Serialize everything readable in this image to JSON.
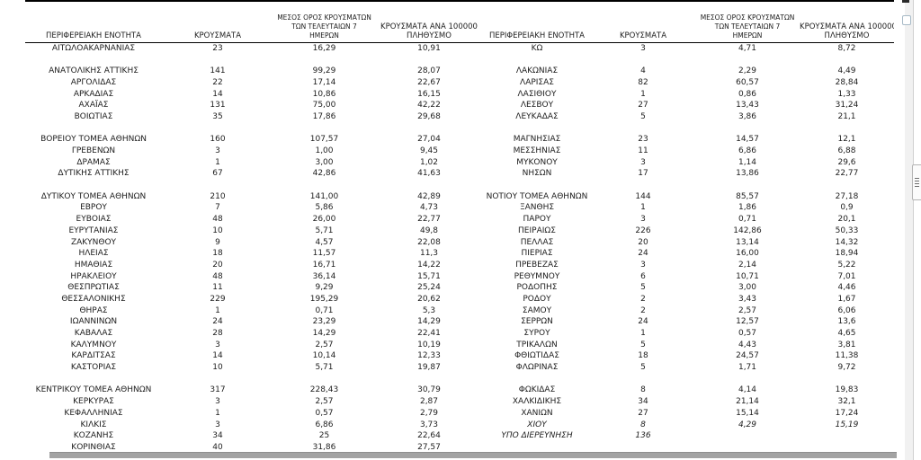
{
  "columns": {
    "region": "ΠΕΡΙΦΕΡΕΙΑΚΗ ΕΝΟΤΗΤΑ",
    "cases": "ΚΡΟΥΣΜΑΤΑ",
    "avg7_lines": [
      "ΜΕΣΟΣ ΟΡΟΣ ΚΡΟΥΣΜΑΤΩΝ",
      "ΤΩΝ ΤΕΛΕΥΤΑΙΩΝ 7",
      "ΗΜΕΡΩΝ"
    ],
    "per100k_lines": [
      "ΚΡΟΥΣΜΑΤΑ ΑΝΑ 100000",
      "ΠΛΗΘΥΣΜΟ"
    ]
  },
  "colors": {
    "text": "#1d1d1d",
    "table_border": "#000000",
    "bottom_bar": "#a3a3a3",
    "scroll_strip": "#f1f1f1"
  },
  "rows": [
    {
      "left": {
        "region": "ΑΙΤΩΛΟΑΚΑΡΝΑΝΙΑΣ",
        "cases": "23",
        "avg7": "16,29",
        "per100k": "10,91"
      },
      "right": {
        "region": "ΚΩ",
        "cases": "3",
        "avg7": "4,71",
        "per100k": "8,72"
      }
    },
    {
      "left": null,
      "right": null
    },
    {
      "left": {
        "region": "ΑΝΑΤΟΛΙΚΗΣ ΑΤΤΙΚΗΣ",
        "cases": "141",
        "avg7": "99,29",
        "per100k": "28,07"
      },
      "right": {
        "region": "ΛΑΚΩΝΙΑΣ",
        "cases": "4",
        "avg7": "2,29",
        "per100k": "4,49"
      }
    },
    {
      "left": {
        "region": "ΑΡΓΟΛΙΔΑΣ",
        "cases": "22",
        "avg7": "17,14",
        "per100k": "22,67"
      },
      "right": {
        "region": "ΛΑΡΙΣΑΣ",
        "cases": "82",
        "avg7": "60,57",
        "per100k": "28,84"
      }
    },
    {
      "left": {
        "region": "ΑΡΚΑΔΙΑΣ",
        "cases": "14",
        "avg7": "10,86",
        "per100k": "16,15"
      },
      "right": {
        "region": "ΛΑΣΙΘΙΟΥ",
        "cases": "1",
        "avg7": "0,86",
        "per100k": "1,33"
      }
    },
    {
      "left": {
        "region": "ΑΧΑΪΑΣ",
        "cases": "131",
        "avg7": "75,00",
        "per100k": "42,22"
      },
      "right": {
        "region": "ΛΕΣΒΟΥ",
        "cases": "27",
        "avg7": "13,43",
        "per100k": "31,24"
      }
    },
    {
      "left": {
        "region": "ΒΟΙΩΤΙΑΣ",
        "cases": "35",
        "avg7": "17,86",
        "per100k": "29,68"
      },
      "right": {
        "region": "ΛΕΥΚΑΔΑΣ",
        "cases": "5",
        "avg7": "3,86",
        "per100k": "21,1"
      }
    },
    {
      "left": null,
      "right": null
    },
    {
      "left": {
        "region": "ΒΟΡΕΙΟΥ ΤΟΜΕΑ ΑΘΗΝΩΝ",
        "cases": "160",
        "avg7": "107,57",
        "per100k": "27,04"
      },
      "right": {
        "region": "ΜΑΓΝΗΣΙΑΣ",
        "cases": "23",
        "avg7": "14,57",
        "per100k": "12,1"
      }
    },
    {
      "left": {
        "region": "ΓΡΕΒΕΝΩΝ",
        "cases": "3",
        "avg7": "1,00",
        "per100k": "9,45"
      },
      "right": {
        "region": "ΜΕΣΣΗΝΙΑΣ",
        "cases": "11",
        "avg7": "6,86",
        "per100k": "6,88"
      }
    },
    {
      "left": {
        "region": "ΔΡΑΜΑΣ",
        "cases": "1",
        "avg7": "3,00",
        "per100k": "1,02"
      },
      "right": {
        "region": "ΜΥΚΟΝΟΥ",
        "cases": "3",
        "avg7": "1,14",
        "per100k": "29,6"
      }
    },
    {
      "left": {
        "region": "ΔΥΤΙΚΗΣ ΑΤΤΙΚΗΣ",
        "cases": "67",
        "avg7": "42,86",
        "per100k": "41,63"
      },
      "right": {
        "region": "ΝΗΣΩΝ",
        "cases": "17",
        "avg7": "13,86",
        "per100k": "22,77"
      }
    },
    {
      "left": null,
      "right": null
    },
    {
      "left": {
        "region": "ΔΥΤΙΚΟΥ ΤΟΜΕΑ ΑΘΗΝΩΝ",
        "cases": "210",
        "avg7": "141,00",
        "per100k": "42,89"
      },
      "right": {
        "region": "ΝΟΤΙΟΥ ΤΟΜΕΑ ΑΘΗΝΩΝ",
        "cases": "144",
        "avg7": "85,57",
        "per100k": "27,18"
      }
    },
    {
      "left": {
        "region": "ΕΒΡΟΥ",
        "cases": "7",
        "avg7": "5,86",
        "per100k": "4,73"
      },
      "right": {
        "region": "ΞΑΝΘΗΣ",
        "cases": "1",
        "avg7": "1,86",
        "per100k": "0,9"
      }
    },
    {
      "left": {
        "region": "ΕΥΒΟΙΑΣ",
        "cases": "48",
        "avg7": "26,00",
        "per100k": "22,77"
      },
      "right": {
        "region": "ΠΑΡΟΥ",
        "cases": "3",
        "avg7": "0,71",
        "per100k": "20,1"
      }
    },
    {
      "left": {
        "region": "ΕΥΡΥΤΑΝΙΑΣ",
        "cases": "10",
        "avg7": "5,71",
        "per100k": "49,8"
      },
      "right": {
        "region": "ΠΕΙΡΑΙΩΣ",
        "cases": "226",
        "avg7": "142,86",
        "per100k": "50,33"
      }
    },
    {
      "left": {
        "region": "ΖΑΚΥΝΘΟΥ",
        "cases": "9",
        "avg7": "4,57",
        "per100k": "22,08"
      },
      "right": {
        "region": "ΠΕΛΛΑΣ",
        "cases": "20",
        "avg7": "13,14",
        "per100k": "14,32"
      }
    },
    {
      "left": {
        "region": "ΗΛΕΙΑΣ",
        "cases": "18",
        "avg7": "11,57",
        "per100k": "11,3"
      },
      "right": {
        "region": "ΠΙΕΡΙΑΣ",
        "cases": "24",
        "avg7": "16,00",
        "per100k": "18,94"
      }
    },
    {
      "left": {
        "region": "ΗΜΑΘΙΑΣ",
        "cases": "20",
        "avg7": "16,71",
        "per100k": "14,22"
      },
      "right": {
        "region": "ΠΡΕΒΕΖΑΣ",
        "cases": "3",
        "avg7": "2,14",
        "per100k": "5,22"
      }
    },
    {
      "left": {
        "region": "ΗΡΑΚΛΕΙΟΥ",
        "cases": "48",
        "avg7": "36,14",
        "per100k": "15,71"
      },
      "right": {
        "region": "ΡΕΘΥΜΝΟΥ",
        "cases": "6",
        "avg7": "10,71",
        "per100k": "7,01"
      }
    },
    {
      "left": {
        "region": "ΘΕΣΠΡΩΤΙΑΣ",
        "cases": "11",
        "avg7": "9,29",
        "per100k": "25,24"
      },
      "right": {
        "region": "ΡΟΔΟΠΗΣ",
        "cases": "5",
        "avg7": "3,00",
        "per100k": "4,46"
      }
    },
    {
      "left": {
        "region": "ΘΕΣΣΑΛΟΝΙΚΗΣ",
        "cases": "229",
        "avg7": "195,29",
        "per100k": "20,62"
      },
      "right": {
        "region": "ΡΟΔΟΥ",
        "cases": "2",
        "avg7": "3,43",
        "per100k": "1,67"
      }
    },
    {
      "left": {
        "region": "ΘΗΡΑΣ",
        "cases": "1",
        "avg7": "0,71",
        "per100k": "5,3"
      },
      "right": {
        "region": "ΣΑΜΟΥ",
        "cases": "2",
        "avg7": "2,57",
        "per100k": "6,06"
      }
    },
    {
      "left": {
        "region": "ΙΩΑΝΝΙΝΩΝ",
        "cases": "24",
        "avg7": "23,29",
        "per100k": "14,29"
      },
      "right": {
        "region": "ΣΕΡΡΩΝ",
        "cases": "24",
        "avg7": "12,57",
        "per100k": "13,6"
      }
    },
    {
      "left": {
        "region": "ΚΑΒΑΛΑΣ",
        "cases": "28",
        "avg7": "14,29",
        "per100k": "22,41"
      },
      "right": {
        "region": "ΣΥΡΟΥ",
        "cases": "1",
        "avg7": "0,57",
        "per100k": "4,65"
      }
    },
    {
      "left": {
        "region": "ΚΑΛΥΜΝΟΥ",
        "cases": "3",
        "avg7": "2,57",
        "per100k": "10,19"
      },
      "right": {
        "region": "ΤΡΙΚΑΛΩΝ",
        "cases": "5",
        "avg7": "4,43",
        "per100k": "3,81"
      }
    },
    {
      "left": {
        "region": "ΚΑΡΔΙΤΣΑΣ",
        "cases": "14",
        "avg7": "10,14",
        "per100k": "12,33"
      },
      "right": {
        "region": "ΦΘΙΩΤΙΔΑΣ",
        "cases": "18",
        "avg7": "24,57",
        "per100k": "11,38"
      }
    },
    {
      "left": {
        "region": "ΚΑΣΤΟΡΙΑΣ",
        "cases": "10",
        "avg7": "5,71",
        "per100k": "19,87"
      },
      "right": {
        "region": "ΦΛΩΡΙΝΑΣ",
        "cases": "5",
        "avg7": "1,71",
        "per100k": "9,72"
      }
    },
    {
      "left": null,
      "right": null
    },
    {
      "left": {
        "region": "ΚΕΝΤΡΙΚΟΥ ΤΟΜΕΑ ΑΘΗΝΩΝ",
        "cases": "317",
        "avg7": "228,43",
        "per100k": "30,79"
      },
      "right": {
        "region": "ΦΩΚΙΔΑΣ",
        "cases": "8",
        "avg7": "4,14",
        "per100k": "19,83"
      }
    },
    {
      "left": {
        "region": "ΚΕΡΚΥΡΑΣ",
        "cases": "3",
        "avg7": "2,57",
        "per100k": "2,87"
      },
      "right": {
        "region": "ΧΑΛΚΙΔΙΚΗΣ",
        "cases": "34",
        "avg7": "21,14",
        "per100k": "32,1"
      }
    },
    {
      "left": {
        "region": "ΚΕΦΑΛΛΗΝΙΑΣ",
        "cases": "1",
        "avg7": "0,57",
        "per100k": "2,79"
      },
      "right": {
        "region": "ΧΑΝΙΩΝ",
        "cases": "27",
        "avg7": "15,14",
        "per100k": "17,24"
      }
    },
    {
      "left": {
        "region": "ΚΙΛΚΙΣ",
        "cases": "3",
        "avg7": "6,86",
        "per100k": "3,73"
      },
      "right": {
        "region": "ΧΙΟΥ",
        "cases": "8",
        "avg7": "4,29",
        "per100k": "15,19",
        "italic": true
      }
    },
    {
      "left": {
        "region": "ΚΟΖΑΝΗΣ",
        "cases": "34",
        "avg7": "25",
        "per100k": "22,64"
      },
      "right": {
        "region": "ΥΠΟ ΔΙΕΡΕΥΝΗΣΗ",
        "cases": "136",
        "avg7": "",
        "per100k": "",
        "italic": true
      }
    },
    {
      "left": {
        "region": "ΚΟΡΙΝΘΙΑΣ",
        "cases": "40",
        "avg7": "31,86",
        "per100k": "27,57"
      },
      "right": null
    }
  ]
}
